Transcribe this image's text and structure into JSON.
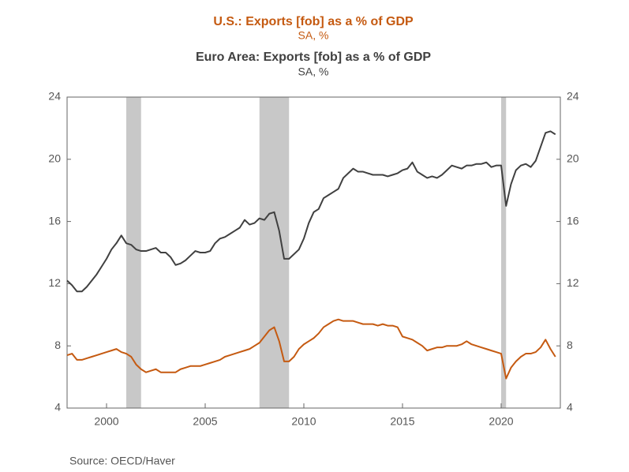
{
  "chart_data": {
    "type": "line",
    "title": "U.S.: Exports [fob] as a % of GDP",
    "subtitle": "SA, %",
    "title2": "Euro Area: Exports [fob] as a % of GDP",
    "subtitle2": "SA, %",
    "source": "Source:  OECD/Haver",
    "x": [
      1998,
      1998.25,
      1998.5,
      1998.75,
      1999,
      1999.25,
      1999.5,
      1999.75,
      2000,
      2000.25,
      2000.5,
      2000.75,
      2001,
      2001.25,
      2001.5,
      2001.75,
      2002,
      2002.25,
      2002.5,
      2002.75,
      2003,
      2003.25,
      2003.5,
      2003.75,
      2004,
      2004.25,
      2004.5,
      2004.75,
      2005,
      2005.25,
      2005.5,
      2005.75,
      2006,
      2006.25,
      2006.5,
      2006.75,
      2007,
      2007.25,
      2007.5,
      2007.75,
      2008,
      2008.25,
      2008.5,
      2008.75,
      2009,
      2009.25,
      2009.5,
      2009.75,
      2010,
      2010.25,
      2010.5,
      2010.75,
      2011,
      2011.25,
      2011.5,
      2011.75,
      2012,
      2012.25,
      2012.5,
      2012.75,
      2013,
      2013.25,
      2013.5,
      2013.75,
      2014,
      2014.25,
      2014.5,
      2014.75,
      2015,
      2015.25,
      2015.5,
      2015.75,
      2016,
      2016.25,
      2016.5,
      2016.75,
      2017,
      2017.25,
      2017.5,
      2017.75,
      2018,
      2018.25,
      2018.5,
      2018.75,
      2019,
      2019.25,
      2019.5,
      2019.75,
      2020,
      2020.25,
      2020.5,
      2020.75,
      2021,
      2021.25,
      2021.5,
      2021.75,
      2022,
      2022.25,
      2022.5,
      2022.75
    ],
    "series": [
      {
        "name": "U.S.",
        "color": "#c55a11",
        "values": [
          7.4,
          7.5,
          7.1,
          7.1,
          7.2,
          7.3,
          7.4,
          7.5,
          7.6,
          7.7,
          7.8,
          7.6,
          7.5,
          7.3,
          6.8,
          6.5,
          6.3,
          6.4,
          6.5,
          6.3,
          6.3,
          6.3,
          6.3,
          6.5,
          6.6,
          6.7,
          6.7,
          6.7,
          6.8,
          6.9,
          7.0,
          7.1,
          7.3,
          7.4,
          7.5,
          7.6,
          7.7,
          7.8,
          8.0,
          8.2,
          8.6,
          9.0,
          9.2,
          8.3,
          7.0,
          7.0,
          7.3,
          7.8,
          8.1,
          8.3,
          8.5,
          8.8,
          9.2,
          9.4,
          9.6,
          9.7,
          9.6,
          9.6,
          9.6,
          9.5,
          9.4,
          9.4,
          9.4,
          9.3,
          9.4,
          9.3,
          9.3,
          9.2,
          8.6,
          8.5,
          8.4,
          8.2,
          8.0,
          7.7,
          7.8,
          7.9,
          7.9,
          8.0,
          8.0,
          8.0,
          8.1,
          8.3,
          8.1,
          8.0,
          7.9,
          7.8,
          7.7,
          7.6,
          7.5,
          5.9,
          6.6,
          7.0,
          7.3,
          7.5,
          7.5,
          7.6,
          7.9,
          8.4,
          7.8,
          7.3
        ]
      },
      {
        "name": "Euro Area",
        "color": "#404040",
        "axis": "y2",
        "values": [
          12.2,
          11.9,
          11.5,
          11.5,
          11.8,
          12.2,
          12.6,
          13.1,
          13.6,
          14.2,
          14.6,
          15.1,
          14.6,
          14.5,
          14.2,
          14.1,
          14.1,
          14.2,
          14.3,
          14.0,
          14.0,
          13.7,
          13.2,
          13.3,
          13.5,
          13.8,
          14.1,
          14.0,
          14.0,
          14.1,
          14.6,
          14.9,
          15.0,
          15.2,
          15.4,
          15.6,
          16.1,
          15.8,
          15.9,
          16.2,
          16.1,
          16.5,
          16.6,
          15.4,
          13.6,
          13.6,
          13.9,
          14.2,
          14.9,
          15.9,
          16.6,
          16.8,
          17.5,
          17.7,
          17.9,
          18.1,
          18.8,
          19.1,
          19.4,
          19.2,
          19.2,
          19.1,
          19.0,
          19.0,
          19.0,
          18.9,
          19.0,
          19.1,
          19.3,
          19.4,
          19.8,
          19.2,
          19.0,
          18.8,
          18.9,
          18.8,
          19.0,
          19.3,
          19.6,
          19.5,
          19.4,
          19.6,
          19.6,
          19.7,
          19.7,
          19.8,
          19.5,
          19.6,
          19.6,
          17.0,
          18.4,
          19.3,
          19.6,
          19.7,
          19.5,
          19.9,
          20.8,
          21.7,
          21.8,
          21.6
        ]
      }
    ],
    "shaded_periods": [
      [
        2001,
        2001.75
      ],
      [
        2007.75,
        2009.25
      ],
      [
        2020,
        2020.25
      ]
    ],
    "shade_color": "#c8c8c8",
    "xlim": [
      1998,
      2023
    ],
    "xticks": [
      2000,
      2005,
      2010,
      2015,
      2020
    ],
    "ylim": [
      4,
      24
    ],
    "yticks": [
      4,
      8,
      12,
      16,
      20,
      24
    ],
    "y2lim": [
      4,
      24
    ],
    "y2ticks": [
      4,
      8,
      12,
      16,
      20,
      24
    ],
    "grid": false
  }
}
